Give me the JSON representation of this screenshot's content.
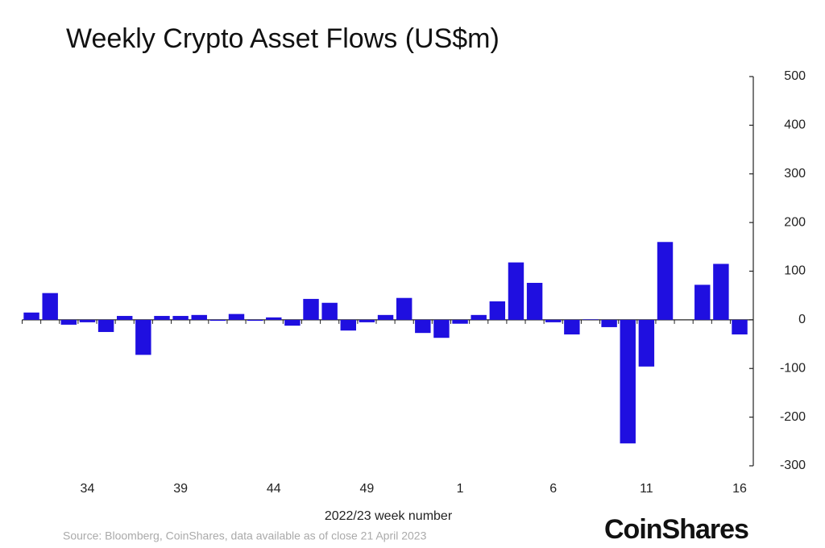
{
  "chart_data": {
    "type": "bar",
    "title": "Weekly Crypto Asset Flows (US$m)",
    "x_label": "2022/23 week number",
    "source": "Source: Bloomberg, CoinShares, data available as of close 21 April 2023",
    "categories": [
      null,
      null,
      null,
      "34",
      null,
      null,
      null,
      null,
      "39",
      null,
      null,
      null,
      null,
      "44",
      null,
      null,
      null,
      null,
      "49",
      null,
      null,
      null,
      null,
      "1",
      null,
      null,
      null,
      null,
      "6",
      null,
      null,
      null,
      null,
      "11",
      null,
      null,
      null,
      null,
      "16"
    ],
    "values": [
      15,
      55,
      -10,
      -5,
      -25,
      8,
      -72,
      8,
      8,
      10,
      -2,
      12,
      -2,
      5,
      -12,
      43,
      35,
      -22,
      -5,
      10,
      45,
      -27,
      -37,
      -8,
      10,
      38,
      118,
      76,
      -5,
      -30,
      1,
      -15,
      -254,
      -96,
      160,
      0,
      72,
      115,
      -30
    ],
    "color": "#1f0fe0",
    "ylim": [
      -300,
      500
    ],
    "yticks": [
      -300,
      -200,
      -100,
      0,
      100,
      200,
      300,
      400,
      500
    ],
    "y_axis_side": "right",
    "grid": false
  },
  "logo": "CoinShares"
}
